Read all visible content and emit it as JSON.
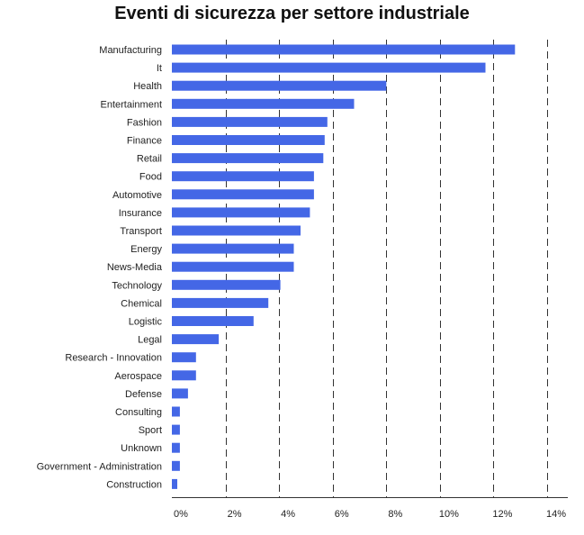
{
  "chart_data": {
    "type": "bar",
    "orientation": "horizontal",
    "title": "Eventi di sicurezza per settore industriale",
    "xlabel": "",
    "ylabel": "",
    "categories": [
      "Manufacturing",
      "It",
      "Health",
      "Entertainment",
      "Fashion",
      "Finance",
      "Retail",
      "Food",
      "Automotive",
      "Insurance",
      "Transport",
      "Energy",
      "News-Media",
      "Technology",
      "Chemical",
      "Logistic",
      "Legal",
      "Research - Innovation",
      "Aerospace",
      "Defense",
      "Consulting",
      "Sport",
      "Unknown",
      "Government - Administration",
      "Construction"
    ],
    "values": [
      12.8,
      11.7,
      8.0,
      6.8,
      5.8,
      5.7,
      5.65,
      5.3,
      5.3,
      5.15,
      4.8,
      4.55,
      4.55,
      4.05,
      3.6,
      3.05,
      1.75,
      0.9,
      0.9,
      0.6,
      0.3,
      0.3,
      0.3,
      0.3,
      0.2
    ],
    "xlim": [
      0,
      14
    ],
    "x_ticks": [
      0,
      2,
      4,
      6,
      8,
      10,
      12,
      14
    ],
    "x_tick_labels": [
      "0%",
      "2%",
      "4%",
      "6%",
      "8%",
      "10%",
      "12%",
      "14%"
    ],
    "grid": "vertical dashed",
    "legend": "none",
    "bar_color": "#4467e6"
  }
}
